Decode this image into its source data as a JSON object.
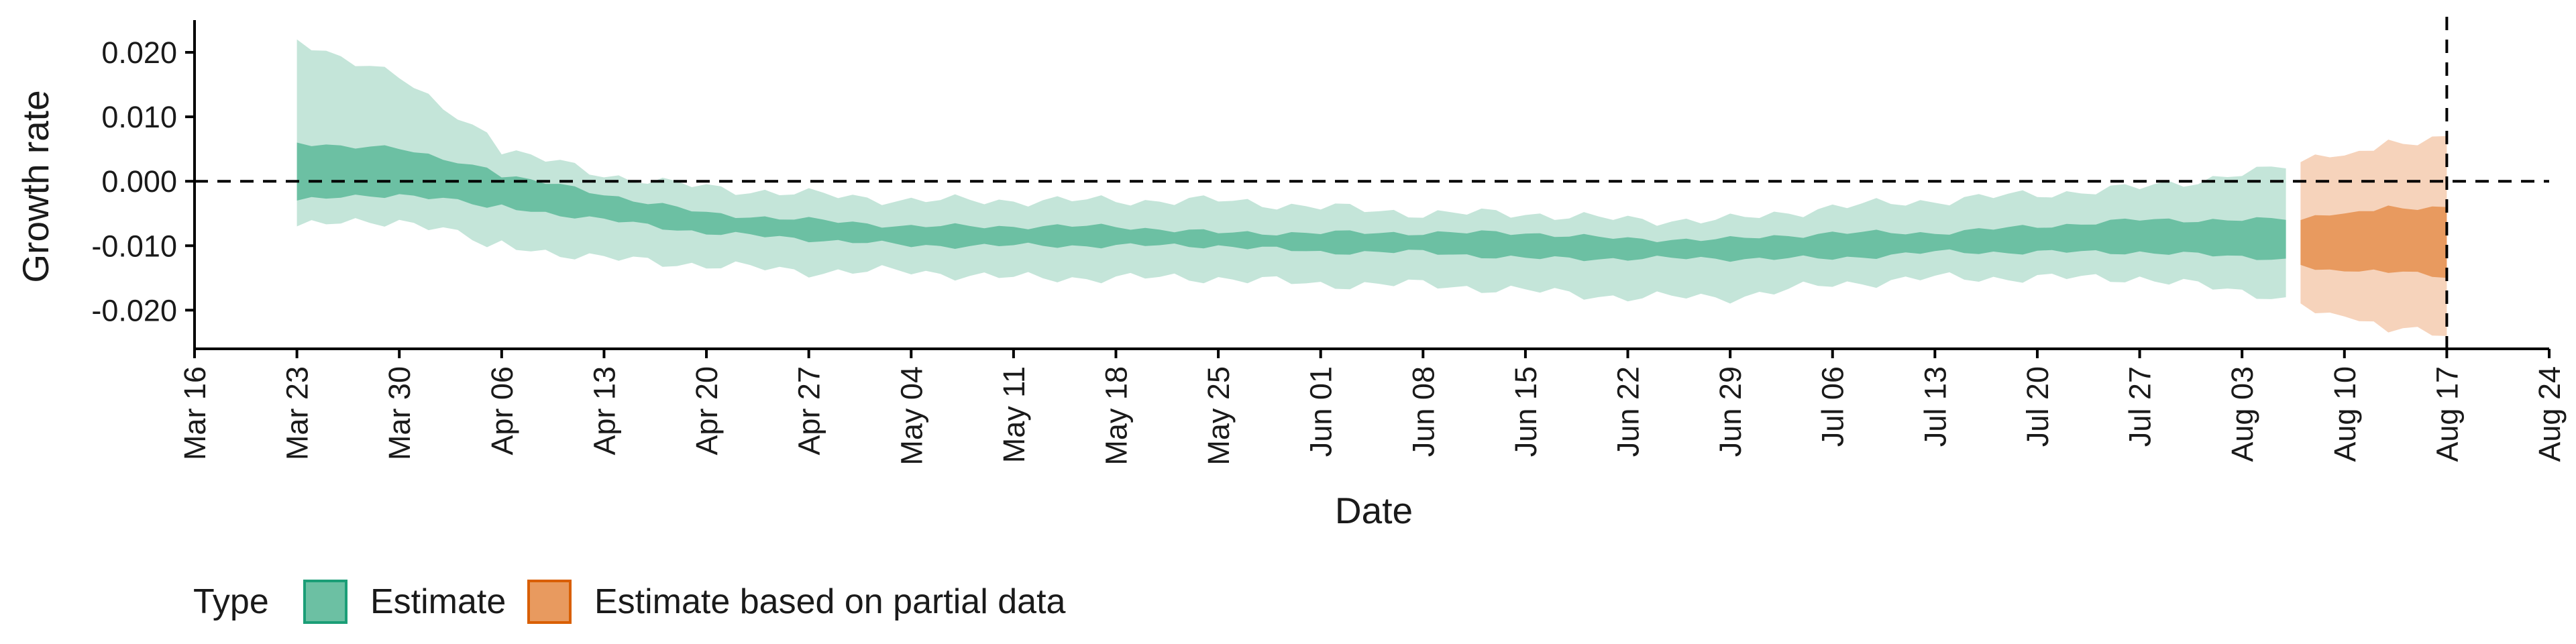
{
  "chart_data": {
    "type": "area",
    "title": "",
    "xlabel": "Date",
    "ylabel": "Growth rate",
    "x_ticks": [
      "Mar 16",
      "Mar 23",
      "Mar 30",
      "Apr 06",
      "Apr 13",
      "Apr 20",
      "Apr 27",
      "May 04",
      "May 11",
      "May 18",
      "May 25",
      "Jun 01",
      "Jun 08",
      "Jun 15",
      "Jun 22",
      "Jun 29",
      "Jul 06",
      "Jul 13",
      "Jul 20",
      "Jul 27",
      "Aug 03",
      "Aug 10",
      "Aug 17",
      "Aug 24"
    ],
    "y_ticks": [
      "0.020",
      "0.010",
      "0.000",
      "-0.010",
      "-0.020"
    ],
    "y_tick_values": [
      0.02,
      0.01,
      0.0,
      -0.01,
      -0.02
    ],
    "ylim": [
      -0.026,
      0.025
    ],
    "xlim": [
      "2020-03-16",
      "2020-08-24"
    ],
    "reference_lines": {
      "horizontal_y": 0.0,
      "vertical_date": "2020-08-17"
    },
    "grid": false,
    "legend": {
      "title": "Type",
      "position": "bottom-left",
      "entries": [
        {
          "label": "Estimate",
          "fill": "#6cc0a3",
          "border": "#1b9e77"
        },
        {
          "label": "Estimate based on partial data",
          "fill": "#e89a5f",
          "border": "#d95f02"
        }
      ]
    },
    "colors": {
      "estimate_outer": "#c4e5d9",
      "estimate_inner": "#6cc0a3",
      "partial_outer": "#f6d3bb",
      "partial_inner": "#e89a5f",
      "reference_line": "#000000"
    },
    "series": [
      {
        "name": "Estimate",
        "points": [
          {
            "date": "2020-03-23",
            "outer": [
              -0.007,
              0.022
            ],
            "inner": [
              -0.003,
              0.006
            ]
          },
          {
            "date": "2020-03-30",
            "outer": [
              -0.006,
              0.016
            ],
            "inner": [
              -0.002,
              0.005
            ]
          },
          {
            "date": "2020-04-03",
            "outer": [
              -0.008,
              0.01
            ],
            "inner": [
              -0.003,
              0.003
            ]
          },
          {
            "date": "2020-04-06",
            "outer": [
              -0.01,
              0.005
            ],
            "inner": [
              -0.004,
              0.001
            ]
          },
          {
            "date": "2020-04-13",
            "outer": [
              -0.012,
              0.001
            ],
            "inner": [
              -0.006,
              -0.002
            ]
          },
          {
            "date": "2020-04-20",
            "outer": [
              -0.013,
              -0.001
            ],
            "inner": [
              -0.008,
              -0.005
            ]
          },
          {
            "date": "2020-04-27",
            "outer": [
              -0.014,
              -0.002
            ],
            "inner": [
              -0.009,
              -0.006
            ]
          },
          {
            "date": "2020-05-04",
            "outer": [
              -0.014,
              -0.003
            ],
            "inner": [
              -0.01,
              -0.007
            ]
          },
          {
            "date": "2020-05-11",
            "outer": [
              -0.015,
              -0.003
            ],
            "inner": [
              -0.01,
              -0.007
            ]
          },
          {
            "date": "2020-05-18",
            "outer": [
              -0.015,
              -0.003
            ],
            "inner": [
              -0.01,
              -0.007
            ]
          },
          {
            "date": "2020-05-25",
            "outer": [
              -0.015,
              -0.003
            ],
            "inner": [
              -0.01,
              -0.008
            ]
          },
          {
            "date": "2020-06-01",
            "outer": [
              -0.016,
              -0.004
            ],
            "inner": [
              -0.011,
              -0.008
            ]
          },
          {
            "date": "2020-06-08",
            "outer": [
              -0.016,
              -0.005
            ],
            "inner": [
              -0.011,
              -0.008
            ]
          },
          {
            "date": "2020-06-15",
            "outer": [
              -0.017,
              -0.005
            ],
            "inner": [
              -0.012,
              -0.008
            ]
          },
          {
            "date": "2020-06-22",
            "outer": [
              -0.018,
              -0.006
            ],
            "inner": [
              -0.012,
              -0.009
            ]
          },
          {
            "date": "2020-06-29",
            "outer": [
              -0.018,
              -0.006
            ],
            "inner": [
              -0.012,
              -0.009
            ]
          },
          {
            "date": "2020-07-06",
            "outer": [
              -0.016,
              -0.004
            ],
            "inner": [
              -0.012,
              -0.008
            ]
          },
          {
            "date": "2020-07-13",
            "outer": [
              -0.015,
              -0.003
            ],
            "inner": [
              -0.011,
              -0.008
            ]
          },
          {
            "date": "2020-07-20",
            "outer": [
              -0.015,
              -0.002
            ],
            "inner": [
              -0.011,
              -0.007
            ]
          },
          {
            "date": "2020-07-27",
            "outer": [
              -0.015,
              -0.001
            ],
            "inner": [
              -0.011,
              -0.006
            ]
          },
          {
            "date": "2020-08-06",
            "outer": [
              -0.018,
              0.002
            ],
            "inner": [
              -0.012,
              -0.006
            ]
          }
        ]
      },
      {
        "name": "Estimate based on partial data",
        "points": [
          {
            "date": "2020-08-07",
            "outer": [
              -0.019,
              0.003
            ],
            "inner": [
              -0.013,
              -0.006
            ]
          },
          {
            "date": "2020-08-10",
            "outer": [
              -0.021,
              0.004
            ],
            "inner": [
              -0.014,
              -0.005
            ]
          },
          {
            "date": "2020-08-13",
            "outer": [
              -0.023,
              0.006
            ],
            "inner": [
              -0.014,
              -0.004
            ]
          },
          {
            "date": "2020-08-17",
            "outer": [
              -0.024,
              0.007
            ],
            "inner": [
              -0.015,
              -0.004
            ]
          }
        ]
      }
    ]
  }
}
